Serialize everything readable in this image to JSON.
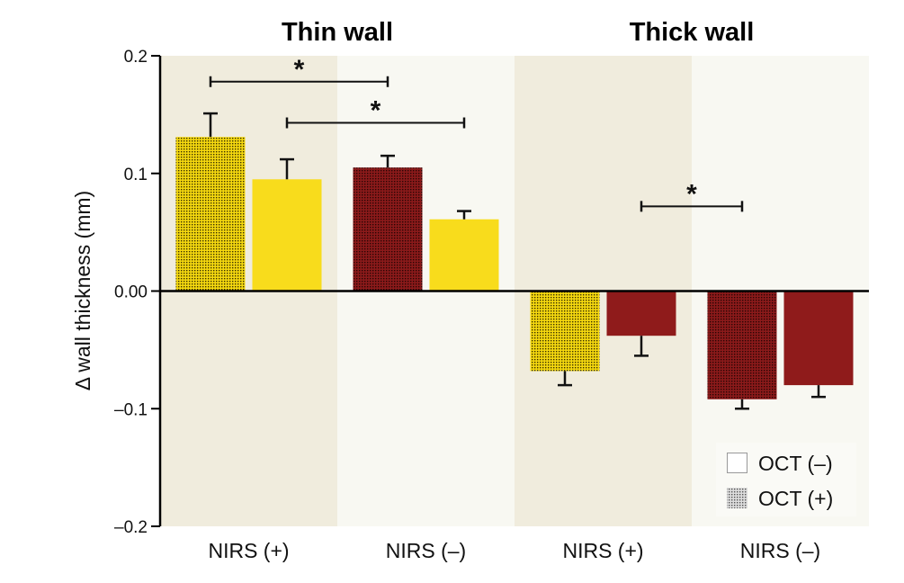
{
  "chart_data": {
    "type": "bar",
    "title": "",
    "xlabel": "",
    "ylabel": "Δ wall thickness (mm)",
    "ylim": [
      -0.2,
      0.2
    ],
    "yticks": [
      {
        "value": 0.2,
        "label": "0.2"
      },
      {
        "value": 0.1,
        "label": "0.1"
      },
      {
        "value": 0.0,
        "label": "0.00"
      },
      {
        "value": -0.1,
        "label": "–0.1"
      },
      {
        "value": -0.2,
        "label": "–0.2"
      }
    ],
    "grid": false,
    "groups": [
      {
        "title": "Thin wall",
        "background": "#f0ecdd",
        "categories": [
          "NIRS (+)",
          "NIRS (–)"
        ]
      },
      {
        "title": "Thick wall",
        "background": "#f0ecdd",
        "categories": [
          "NIRS (+)",
          "NIRS (–)"
        ]
      }
    ],
    "category_backgrounds": [
      "#f0ecdd",
      "#f8f8f2",
      "#f0ecdd",
      "#f8f8f2"
    ],
    "categories": [
      "NIRS (+)",
      "NIRS (–)",
      "NIRS (+)",
      "NIRS (–)"
    ],
    "series": [
      {
        "name": "OCT (+)",
        "pattern": "dotted",
        "values": [
          0.131,
          0.105,
          -0.068,
          -0.092
        ],
        "errors": [
          0.02,
          0.01,
          0.012,
          0.008
        ]
      },
      {
        "name": "OCT (–)",
        "pattern": "solid",
        "values": [
          0.095,
          0.061,
          -0.038,
          -0.08
        ],
        "errors": [
          0.017,
          0.007,
          0.017,
          0.01
        ]
      }
    ],
    "bar_colors": [
      "#f5d80f",
      "#f5d80f",
      "#8b1a1a",
      "#8b1a1a"
    ],
    "bar_colors_solid": [
      "#f8dc1c",
      "#f8dc1c",
      "#8f1b1b",
      "#8f1b1b"
    ],
    "significance": [
      {
        "from": [
          0,
          "OCT (+)"
        ],
        "to": [
          1,
          "OCT (+)"
        ],
        "level": 0.178,
        "label": "*"
      },
      {
        "from": [
          0,
          "OCT (–)"
        ],
        "to": [
          1,
          "OCT (–)"
        ],
        "level": 0.143,
        "label": "*"
      },
      {
        "from": [
          2,
          "OCT (–)"
        ],
        "to": [
          3,
          "OCT (+)"
        ],
        "level": 0.072,
        "label": "*"
      }
    ],
    "legend": {
      "placement": "bottom-right",
      "entries": [
        {
          "label": "OCT (–)",
          "swatch": "open"
        },
        {
          "label": "OCT (+)",
          "swatch": "dotted"
        }
      ]
    }
  }
}
